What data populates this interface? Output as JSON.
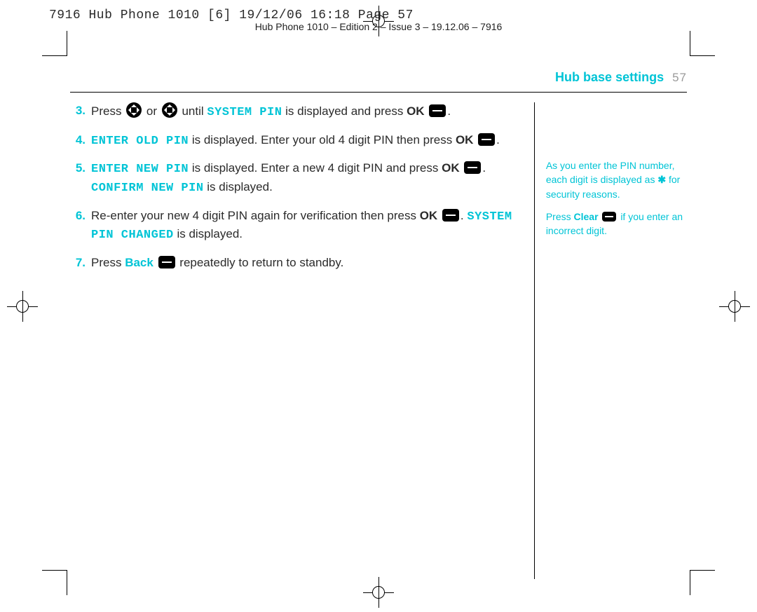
{
  "colors": {
    "accent": "#00c4d6",
    "text": "#2b2b2b",
    "muted": "#9a9a9a",
    "background": "#ffffff",
    "black": "#000000"
  },
  "prepress": {
    "line": "7916 Hub Phone 1010 [6]  19/12/06  16:18  Page 57"
  },
  "doc_header": "Hub Phone 1010 – Edition 2 – Issue 3 – 19.12.06 – 7916",
  "header": {
    "title": "Hub base settings",
    "page_number": "57"
  },
  "steps": [
    {
      "num": "3.",
      "parts": [
        {
          "t": "text",
          "v": "Press "
        },
        {
          "t": "nav-key"
        },
        {
          "t": "text",
          "v": " or "
        },
        {
          "t": "nav-key"
        },
        {
          "t": "text",
          "v": " until "
        },
        {
          "t": "lcd",
          "v": "SYSTEM PIN"
        },
        {
          "t": "text",
          "v": " is displayed and press "
        },
        {
          "t": "bold",
          "v": "OK"
        },
        {
          "t": "text",
          "v": " "
        },
        {
          "t": "soft-key"
        },
        {
          "t": "text",
          "v": "."
        }
      ]
    },
    {
      "num": "4.",
      "parts": [
        {
          "t": "lcd",
          "v": "ENTER OLD PIN"
        },
        {
          "t": "text",
          "v": " is displayed. Enter your old 4 digit PIN then press "
        },
        {
          "t": "bold",
          "v": "OK"
        },
        {
          "t": "text",
          "v": " "
        },
        {
          "t": "soft-key"
        },
        {
          "t": "text",
          "v": "."
        }
      ]
    },
    {
      "num": "5.",
      "parts": [
        {
          "t": "lcd",
          "v": "ENTER NEW PIN"
        },
        {
          "t": "text",
          "v": " is displayed. Enter a new 4 digit PIN and press "
        },
        {
          "t": "bold",
          "v": "OK"
        },
        {
          "t": "text",
          "v": " "
        },
        {
          "t": "soft-key"
        },
        {
          "t": "text",
          "v": ". "
        },
        {
          "t": "lcd",
          "v": "CONFIRM NEW PIN"
        },
        {
          "t": "text",
          "v": " is displayed."
        }
      ]
    },
    {
      "num": "6.",
      "parts": [
        {
          "t": "text",
          "v": "Re-enter your new 4 digit PIN again for verification then press "
        },
        {
          "t": "bold",
          "v": "OK"
        },
        {
          "t": "text",
          "v": " "
        },
        {
          "t": "soft-key"
        },
        {
          "t": "text",
          "v": ". "
        },
        {
          "t": "lcd",
          "v": "SYSTEM PIN CHANGED"
        },
        {
          "t": "text",
          "v": " is displayed."
        }
      ]
    },
    {
      "num": "7.",
      "parts": [
        {
          "t": "text",
          "v": "Press "
        },
        {
          "t": "bold-teal",
          "v": "Back"
        },
        {
          "t": "text",
          "v": " "
        },
        {
          "t": "soft-key"
        },
        {
          "t": "text",
          "v": " repeatedly to return to standby."
        }
      ]
    }
  ],
  "sidebar": {
    "note1_a": "As you enter the PIN number, each digit is displayed as ",
    "note1_star": "✱",
    "note1_b": " for security reasons.",
    "note2_a": "Press ",
    "note2_clear": "Clear",
    "note2_b": " if you enter an incorrect digit."
  }
}
